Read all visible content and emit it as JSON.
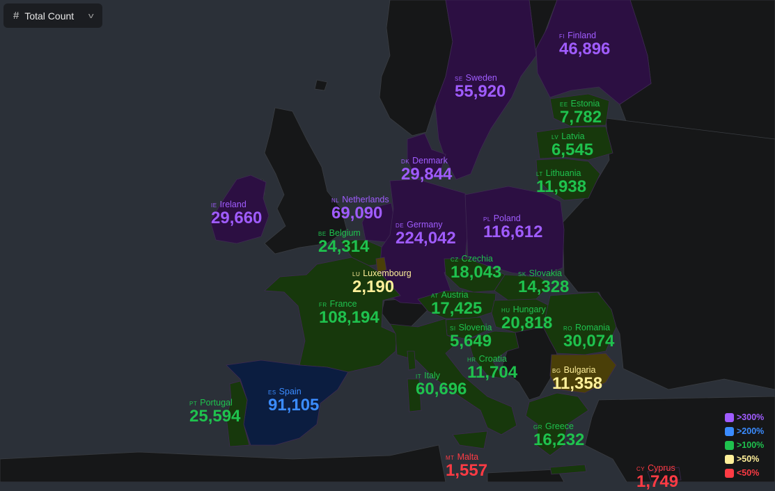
{
  "selector": {
    "icon": "hash-icon",
    "label": "Total Count"
  },
  "colors": {
    "purple": "#a05cff",
    "blue": "#3b8cff",
    "green": "#1fc24e",
    "yellow": "#fff09a",
    "red": "#ff3b44",
    "fill_purple": "#2c0f42",
    "fill_blue": "#0b1d40",
    "fill_green": "#17380c",
    "fill_yellow": "#4a3f08",
    "land_dark": "#161718",
    "sea": "#2b3038"
  },
  "countries": [
    {
      "key": "fi",
      "code": "FI",
      "name": "Finland",
      "value": "46,896",
      "tier": "purple"
    },
    {
      "key": "se",
      "code": "SE",
      "name": "Sweden",
      "value": "55,920",
      "tier": "purple"
    },
    {
      "key": "ee",
      "code": "EE",
      "name": "Estonia",
      "value": "7,782",
      "tier": "green"
    },
    {
      "key": "lv",
      "code": "LV",
      "name": "Latvia",
      "value": "6,545",
      "tier": "green"
    },
    {
      "key": "dk",
      "code": "DK",
      "name": "Denmark",
      "value": "29,844",
      "tier": "purple"
    },
    {
      "key": "lt",
      "code": "LT",
      "name": "Lithuania",
      "value": "11,938",
      "tier": "green"
    },
    {
      "key": "ie",
      "code": "IE",
      "name": "Ireland",
      "value": "29,660",
      "tier": "purple"
    },
    {
      "key": "nl",
      "code": "NL",
      "name": "Netherlands",
      "value": "69,090",
      "tier": "purple"
    },
    {
      "key": "pl",
      "code": "PL",
      "name": "Poland",
      "value": "116,612",
      "tier": "purple"
    },
    {
      "key": "de",
      "code": "DE",
      "name": "Germany",
      "value": "224,042",
      "tier": "purple"
    },
    {
      "key": "be",
      "code": "BE",
      "name": "Belgium",
      "value": "24,314",
      "tier": "green"
    },
    {
      "key": "cz",
      "code": "CZ",
      "name": "Czechia",
      "value": "18,043",
      "tier": "green"
    },
    {
      "key": "lu",
      "code": "LU",
      "name": "Luxembourg",
      "value": "2,190",
      "tier": "yellow"
    },
    {
      "key": "sk",
      "code": "SK",
      "name": "Slovakia",
      "value": "14,328",
      "tier": "green"
    },
    {
      "key": "at",
      "code": "AT",
      "name": "Austria",
      "value": "17,425",
      "tier": "green"
    },
    {
      "key": "fr",
      "code": "FR",
      "name": "France",
      "value": "108,194",
      "tier": "green"
    },
    {
      "key": "hu",
      "code": "HU",
      "name": "Hungary",
      "value": "20,818",
      "tier": "green"
    },
    {
      "key": "si",
      "code": "SI",
      "name": "Slovenia",
      "value": "5,649",
      "tier": "green"
    },
    {
      "key": "ro",
      "code": "RO",
      "name": "Romania",
      "value": "30,074",
      "tier": "green"
    },
    {
      "key": "hr",
      "code": "HR",
      "name": "Croatia",
      "value": "11,704",
      "tier": "green"
    },
    {
      "key": "bg",
      "code": "BG",
      "name": "Bulgaria",
      "value": "11,358",
      "tier": "yellow"
    },
    {
      "key": "it",
      "code": "IT",
      "name": "Italy",
      "value": "60,696",
      "tier": "green"
    },
    {
      "key": "es",
      "code": "ES",
      "name": "Spain",
      "value": "91,105",
      "tier": "blue"
    },
    {
      "key": "pt",
      "code": "PT",
      "name": "Portugal",
      "value": "25,594",
      "tier": "green"
    },
    {
      "key": "gr",
      "code": "GR",
      "name": "Greece",
      "value": "16,232",
      "tier": "green"
    },
    {
      "key": "mt",
      "code": "MT",
      "name": "Malta",
      "value": "1,557",
      "tier": "red"
    },
    {
      "key": "cy",
      "code": "CY",
      "name": "Cyprus",
      "value": "1,749",
      "tier": "red"
    }
  ],
  "legend": [
    {
      "label": ">300%",
      "tier": "purple"
    },
    {
      "label": ">200%",
      "tier": "blue"
    },
    {
      "label": ">100%",
      "tier": "green"
    },
    {
      "label": ">50%",
      "tier": "yellow"
    },
    {
      "label": "<50%",
      "tier": "red"
    }
  ]
}
